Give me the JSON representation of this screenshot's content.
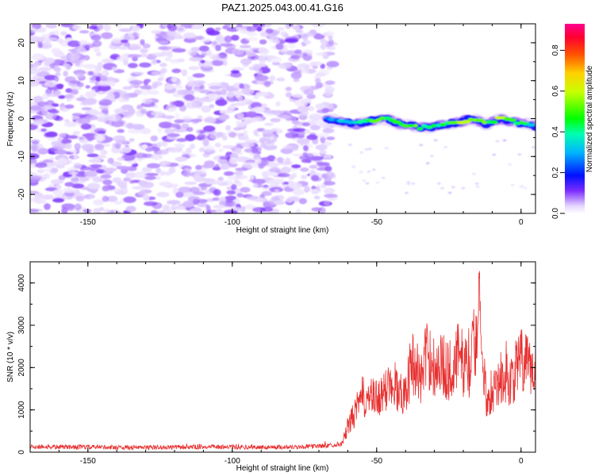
{
  "title": "PAZ1.2025.043.00.41.G16",
  "chart_data": [
    {
      "type": "heatmap",
      "title": "PAZ1.2025.043.00.41.G16",
      "xlabel": "Height of straight line (km)",
      "ylabel": "Frequency (Hz)",
      "xlim": [
        -170,
        5
      ],
      "ylim": [
        -25,
        25
      ],
      "xticks": [
        -150,
        -100,
        -50,
        0
      ],
      "xtick_labels": [
        "-150",
        "-100",
        "-50",
        "0"
      ],
      "yticks": [
        -20,
        -10,
        0,
        10,
        20
      ],
      "ytick_labels": [
        "-20",
        "-10",
        "0",
        "10",
        "20"
      ],
      "colorbar": {
        "label": "Normalized spectral amplitude",
        "range": [
          0,
          0.93
        ],
        "ticks": [
          0.0,
          0.2,
          0.4,
          0.6,
          0.8
        ],
        "tick_labels": [
          "0.0",
          "0.2",
          "0.4",
          "0.6",
          "0.8"
        ]
      },
      "signal_track": {
        "x": [
          -67,
          -62,
          -57,
          -52,
          -47,
          -42,
          -37,
          -32,
          -27,
          -22,
          -17,
          -12,
          -7,
          -2,
          3,
          5
        ],
        "y": [
          0,
          -1,
          -1.5,
          -0.5,
          0,
          -1.5,
          -2,
          -2.5,
          -1.5,
          -1,
          0,
          -1.5,
          0,
          -1,
          -1.5,
          -2
        ],
        "amplitude": [
          0.3,
          0.35,
          0.45,
          0.55,
          0.6,
          0.5,
          0.55,
          0.45,
          0.5,
          0.6,
          0.65,
          0.55,
          0.6,
          0.5,
          0.45,
          0.4
        ]
      },
      "noise_region": {
        "x": [
          -170,
          -65
        ],
        "max_amplitude": 0.12
      }
    },
    {
      "type": "line",
      "xlabel": "Height of straight line (km)",
      "ylabel": "SNR (10 * v/v)",
      "xlim": [
        -170,
        5
      ],
      "ylim": [
        0,
        4500
      ],
      "xticks": [
        -150,
        -100,
        -50,
        0
      ],
      "xtick_labels": [
        "-150",
        "-100",
        "-50",
        "0"
      ],
      "yticks": [
        0,
        1000,
        2000,
        3000,
        4000
      ],
      "ytick_labels": [
        "0",
        "1000",
        "2000",
        "3000",
        "4000"
      ],
      "color": "#e83030",
      "x": [
        -170,
        -150,
        -130,
        -110,
        -90,
        -75,
        -68,
        -62,
        -60,
        -57,
        -55,
        -50,
        -47,
        -45,
        -42,
        -40,
        -38,
        -37,
        -35,
        -32,
        -30,
        -28,
        -25,
        -22,
        -20,
        -18,
        -16,
        -15,
        -14.5,
        -14,
        -13,
        -12,
        -10,
        -8,
        -6,
        -4,
        -2,
        0,
        2,
        5
      ],
      "y": [
        130,
        120,
        110,
        125,
        115,
        130,
        150,
        200,
        600,
        1000,
        1300,
        1250,
        1400,
        1800,
        1350,
        1500,
        2000,
        2200,
        1700,
        2400,
        2000,
        2100,
        1900,
        2250,
        2100,
        2000,
        2600,
        3000,
        4450,
        3000,
        1700,
        1300,
        1500,
        1650,
        1800,
        1650,
        1900,
        2200,
        2000,
        2000
      ]
    }
  ]
}
